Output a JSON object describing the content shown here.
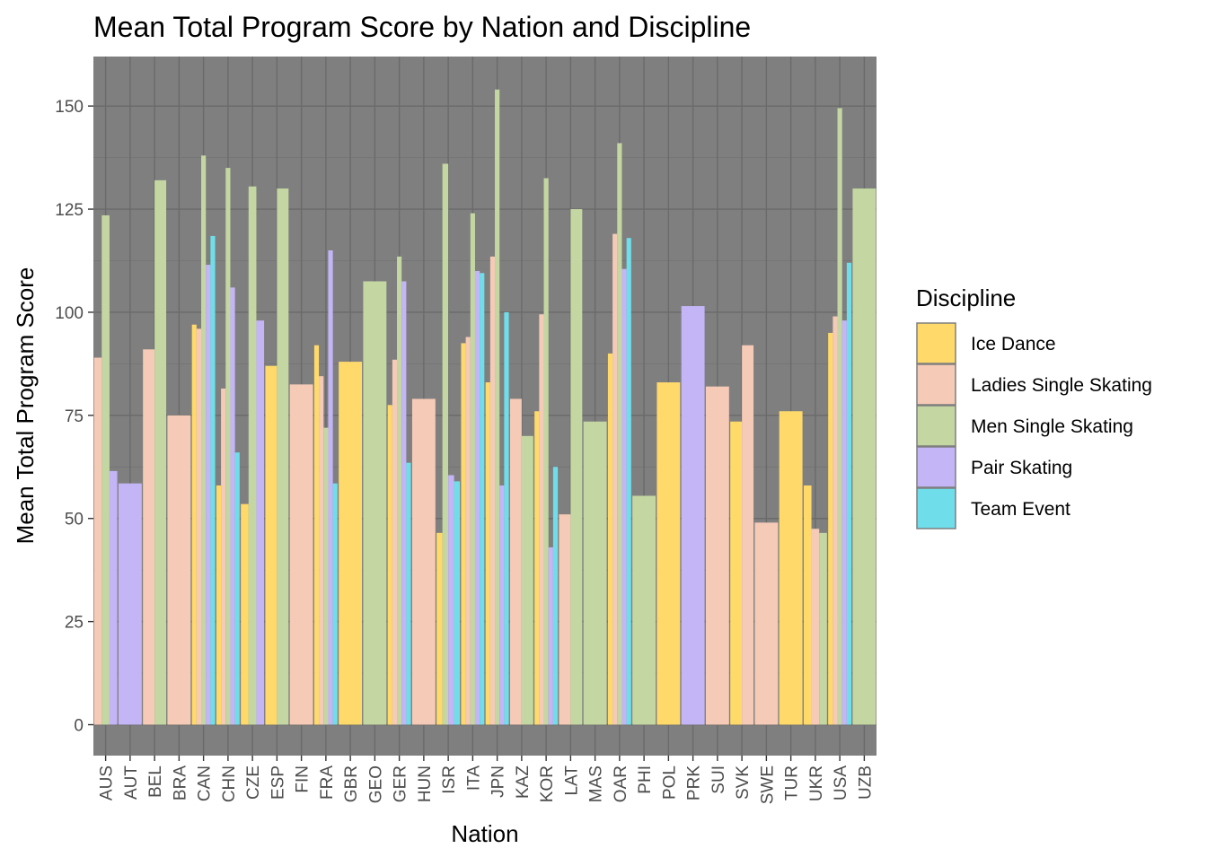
{
  "chart_data": {
    "type": "bar",
    "title": "Mean Total Program Score by Nation and Discipline",
    "xlabel": "Nation",
    "ylabel": "Mean Total Program Score",
    "ylim": [
      -7.5,
      162
    ],
    "yticks": [
      0,
      25,
      50,
      75,
      100,
      125,
      150
    ],
    "grid": true,
    "legend": {
      "title": "Discipline",
      "placement": "right"
    },
    "categories": [
      "AUS",
      "AUT",
      "BEL",
      "BRA",
      "CAN",
      "CHN",
      "CZE",
      "ESP",
      "FIN",
      "FRA",
      "GBR",
      "GEO",
      "GER",
      "HUN",
      "ISR",
      "ITA",
      "JPN",
      "KAZ",
      "KOR",
      "LAT",
      "MAS",
      "OAR",
      "PHI",
      "POL",
      "PRK",
      "SUI",
      "SVK",
      "SWE",
      "TUR",
      "UKR",
      "USA",
      "UZB"
    ],
    "series": [
      {
        "name": "Ice Dance",
        "color": "#FFDA6B"
      },
      {
        "name": "Ladies Single Skating",
        "color": "#F5CAB6"
      },
      {
        "name": "Men Single Skating",
        "color": "#C4D7A2"
      },
      {
        "name": "Pair Skating",
        "color": "#C4B5F6"
      },
      {
        "name": "Team Event",
        "color": "#6FDEEA"
      }
    ],
    "bars": [
      {
        "nation": "AUS",
        "values": [
          {
            "series": "Ladies Single Skating",
            "value": 89
          },
          {
            "series": "Men Single Skating",
            "value": 123.5
          },
          {
            "series": "Pair Skating",
            "value": 61.5
          }
        ]
      },
      {
        "nation": "AUT",
        "values": [
          {
            "series": "Pair Skating",
            "value": 58.5
          }
        ]
      },
      {
        "nation": "BEL",
        "values": [
          {
            "series": "Ladies Single Skating",
            "value": 91
          },
          {
            "series": "Men Single Skating",
            "value": 132
          }
        ]
      },
      {
        "nation": "BRA",
        "values": [
          {
            "series": "Ladies Single Skating",
            "value": 75
          }
        ]
      },
      {
        "nation": "CAN",
        "values": [
          {
            "series": "Ice Dance",
            "value": 97
          },
          {
            "series": "Ladies Single Skating",
            "value": 96
          },
          {
            "series": "Men Single Skating",
            "value": 138
          },
          {
            "series": "Pair Skating",
            "value": 111.5
          },
          {
            "series": "Team Event",
            "value": 118.5
          }
        ]
      },
      {
        "nation": "CHN",
        "values": [
          {
            "series": "Ice Dance",
            "value": 58
          },
          {
            "series": "Ladies Single Skating",
            "value": 81.5
          },
          {
            "series": "Men Single Skating",
            "value": 135
          },
          {
            "series": "Pair Skating",
            "value": 106
          },
          {
            "series": "Team Event",
            "value": 66
          }
        ]
      },
      {
        "nation": "CZE",
        "values": [
          {
            "series": "Ice Dance",
            "value": 53.5
          },
          {
            "series": "Men Single Skating",
            "value": 130.5
          },
          {
            "series": "Pair Skating",
            "value": 98
          }
        ]
      },
      {
        "nation": "ESP",
        "values": [
          {
            "series": "Ice Dance",
            "value": 87
          },
          {
            "series": "Men Single Skating",
            "value": 130
          }
        ]
      },
      {
        "nation": "FIN",
        "values": [
          {
            "series": "Ladies Single Skating",
            "value": 82.5
          }
        ]
      },
      {
        "nation": "FRA",
        "values": [
          {
            "series": "Ice Dance",
            "value": 92
          },
          {
            "series": "Ladies Single Skating",
            "value": 84.5
          },
          {
            "series": "Men Single Skating",
            "value": 72
          },
          {
            "series": "Pair Skating",
            "value": 115
          },
          {
            "series": "Team Event",
            "value": 58.5
          }
        ]
      },
      {
        "nation": "GBR",
        "values": [
          {
            "series": "Ice Dance",
            "value": 88
          }
        ]
      },
      {
        "nation": "GEO",
        "values": [
          {
            "series": "Men Single Skating",
            "value": 107.5
          }
        ]
      },
      {
        "nation": "GER",
        "values": [
          {
            "series": "Ice Dance",
            "value": 77.5
          },
          {
            "series": "Ladies Single Skating",
            "value": 88.5
          },
          {
            "series": "Men Single Skating",
            "value": 113.5
          },
          {
            "series": "Pair Skating",
            "value": 107.5
          },
          {
            "series": "Team Event",
            "value": 63.5
          }
        ]
      },
      {
        "nation": "HUN",
        "values": [
          {
            "series": "Ladies Single Skating",
            "value": 79
          }
        ]
      },
      {
        "nation": "ISR",
        "values": [
          {
            "series": "Ice Dance",
            "value": 46.5
          },
          {
            "series": "Men Single Skating",
            "value": 136
          },
          {
            "series": "Pair Skating",
            "value": 60.5
          },
          {
            "series": "Team Event",
            "value": 59
          }
        ]
      },
      {
        "nation": "ITA",
        "values": [
          {
            "series": "Ice Dance",
            "value": 92.5
          },
          {
            "series": "Ladies Single Skating",
            "value": 94
          },
          {
            "series": "Men Single Skating",
            "value": 124
          },
          {
            "series": "Pair Skating",
            "value": 110
          },
          {
            "series": "Team Event",
            "value": 109.5
          }
        ]
      },
      {
        "nation": "JPN",
        "values": [
          {
            "series": "Ice Dance",
            "value": 83
          },
          {
            "series": "Ladies Single Skating",
            "value": 113.5
          },
          {
            "series": "Men Single Skating",
            "value": 154
          },
          {
            "series": "Pair Skating",
            "value": 58
          },
          {
            "series": "Team Event",
            "value": 100
          }
        ]
      },
      {
        "nation": "KAZ",
        "values": [
          {
            "series": "Ladies Single Skating",
            "value": 79
          },
          {
            "series": "Men Single Skating",
            "value": 70
          }
        ]
      },
      {
        "nation": "KOR",
        "values": [
          {
            "series": "Ice Dance",
            "value": 76
          },
          {
            "series": "Ladies Single Skating",
            "value": 99.5
          },
          {
            "series": "Men Single Skating",
            "value": 132.5
          },
          {
            "series": "Pair Skating",
            "value": 43
          },
          {
            "series": "Team Event",
            "value": 62.5
          }
        ]
      },
      {
        "nation": "LAT",
        "values": [
          {
            "series": "Ladies Single Skating",
            "value": 51
          },
          {
            "series": "Men Single Skating",
            "value": 125
          }
        ]
      },
      {
        "nation": "MAS",
        "values": [
          {
            "series": "Men Single Skating",
            "value": 73.5
          }
        ]
      },
      {
        "nation": "OAR",
        "values": [
          {
            "series": "Ice Dance",
            "value": 90
          },
          {
            "series": "Ladies Single Skating",
            "value": 119
          },
          {
            "series": "Men Single Skating",
            "value": 141
          },
          {
            "series": "Pair Skating",
            "value": 110.5
          },
          {
            "series": "Team Event",
            "value": 118
          }
        ]
      },
      {
        "nation": "PHI",
        "values": [
          {
            "series": "Men Single Skating",
            "value": 55.5
          }
        ]
      },
      {
        "nation": "POL",
        "values": [
          {
            "series": "Ice Dance",
            "value": 83
          }
        ]
      },
      {
        "nation": "PRK",
        "values": [
          {
            "series": "Pair Skating",
            "value": 101.5
          }
        ]
      },
      {
        "nation": "SUI",
        "values": [
          {
            "series": "Ladies Single Skating",
            "value": 82
          }
        ]
      },
      {
        "nation": "SVK",
        "values": [
          {
            "series": "Ice Dance",
            "value": 73.5
          },
          {
            "series": "Ladies Single Skating",
            "value": 92
          }
        ]
      },
      {
        "nation": "SWE",
        "values": [
          {
            "series": "Ladies Single Skating",
            "value": 49
          }
        ]
      },
      {
        "nation": "TUR",
        "values": [
          {
            "series": "Ice Dance",
            "value": 76
          }
        ]
      },
      {
        "nation": "UKR",
        "values": [
          {
            "series": "Ice Dance",
            "value": 58
          },
          {
            "series": "Ladies Single Skating",
            "value": 47.5
          },
          {
            "series": "Men Single Skating",
            "value": 46.5
          }
        ]
      },
      {
        "nation": "USA",
        "values": [
          {
            "series": "Ice Dance",
            "value": 95
          },
          {
            "series": "Ladies Single Skating",
            "value": 99
          },
          {
            "series": "Men Single Skating",
            "value": 149.5
          },
          {
            "series": "Pair Skating",
            "value": 98
          },
          {
            "series": "Team Event",
            "value": 112
          }
        ]
      },
      {
        "nation": "UZB",
        "values": [
          {
            "series": "Men Single Skating",
            "value": 130
          }
        ]
      }
    ]
  }
}
